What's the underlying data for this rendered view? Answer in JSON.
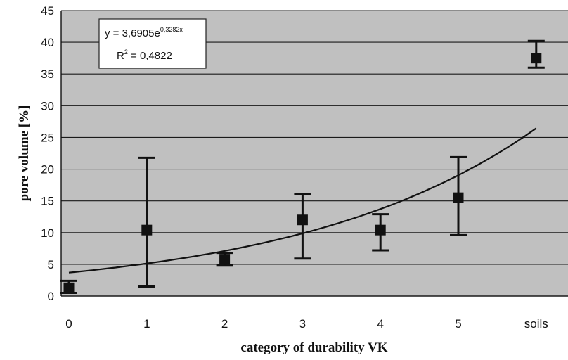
{
  "chart_data": {
    "type": "scatter",
    "title": "",
    "xlabel": "category of durability VK",
    "ylabel": "pore volume [%]",
    "categories": [
      "0",
      "1",
      "2",
      "3",
      "4",
      "5",
      "soils"
    ],
    "ylim": [
      0,
      45
    ],
    "yticks": [
      0,
      5,
      10,
      15,
      20,
      25,
      30,
      35,
      40,
      45
    ],
    "grid": true,
    "series": [
      {
        "values": [
          1.3,
          10.4,
          5.8,
          12.0,
          10.4,
          15.5,
          37.5
        ],
        "err_low": [
          0.5,
          1.5,
          4.8,
          5.9,
          7.2,
          9.6,
          36.0
        ],
        "err_high": [
          2.4,
          21.8,
          6.8,
          16.1,
          12.9,
          21.9,
          40.2
        ]
      }
    ],
    "trendline": {
      "type": "exponential",
      "a": 3.6905,
      "b": 0.3282,
      "x_range": [
        0,
        6
      ]
    },
    "annotation": {
      "equation_main": "y = 3,6905e",
      "equation_exp": "0,3282x",
      "r2_label": "R",
      "r2_sup": "2",
      "r2_value": " = 0,4822"
    },
    "colors": {
      "plot_bg": "#c0c0c0",
      "grid": "#1a1a1a",
      "marker": "#111111",
      "line": "#111111"
    }
  }
}
